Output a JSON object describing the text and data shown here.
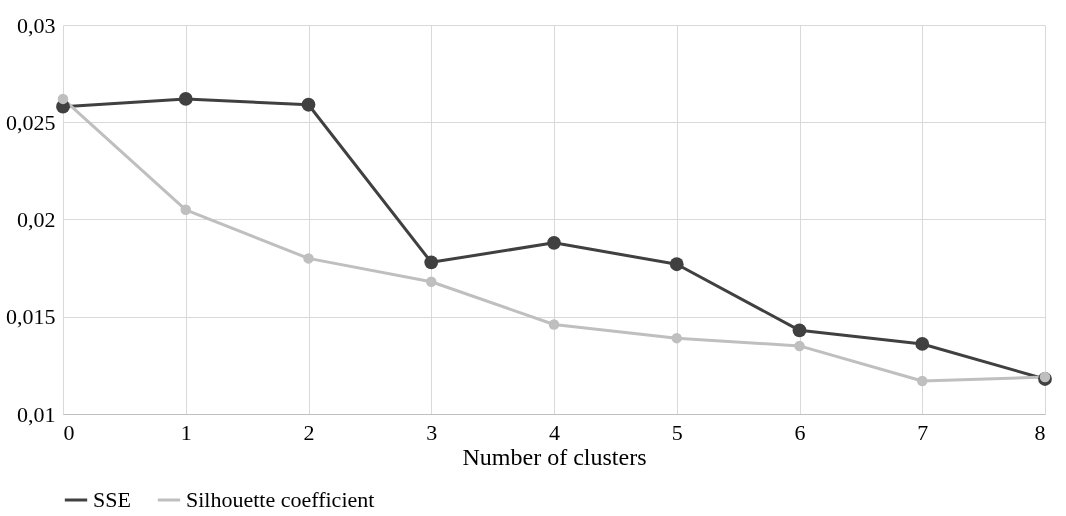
{
  "chart_data": {
    "type": "line",
    "xlabel": "Number of clusters",
    "x": [
      0,
      1,
      2,
      3,
      4,
      5,
      6,
      7,
      8
    ],
    "series": [
      {
        "name": "SSE",
        "color": "#404040",
        "values": [
          0.0258,
          0.0262,
          0.0259,
          0.0178,
          0.0188,
          0.0177,
          0.0143,
          0.0136,
          0.0118
        ]
      },
      {
        "name": "Silhouette coefficient",
        "color": "#bfbfbf",
        "values": [
          0.0262,
          0.0205,
          0.018,
          0.0168,
          0.0146,
          0.0139,
          0.0135,
          0.0117,
          0.0119
        ]
      }
    ],
    "xlim": [
      0,
      8
    ],
    "xticks": [
      0,
      1,
      2,
      3,
      4,
      5,
      6,
      7,
      8
    ],
    "ylim": [
      0.01,
      0.03
    ],
    "yticks": [
      {
        "value": 0.01,
        "label": "0,01"
      },
      {
        "value": 0.015,
        "label": "0,015"
      },
      {
        "value": 0.02,
        "label": "0,02"
      },
      {
        "value": 0.025,
        "label": "0,025"
      },
      {
        "value": 0.03,
        "label": "0,03"
      }
    ],
    "grid": true,
    "legend": "bottom",
    "marker": "circle",
    "line_style": "solid"
  }
}
